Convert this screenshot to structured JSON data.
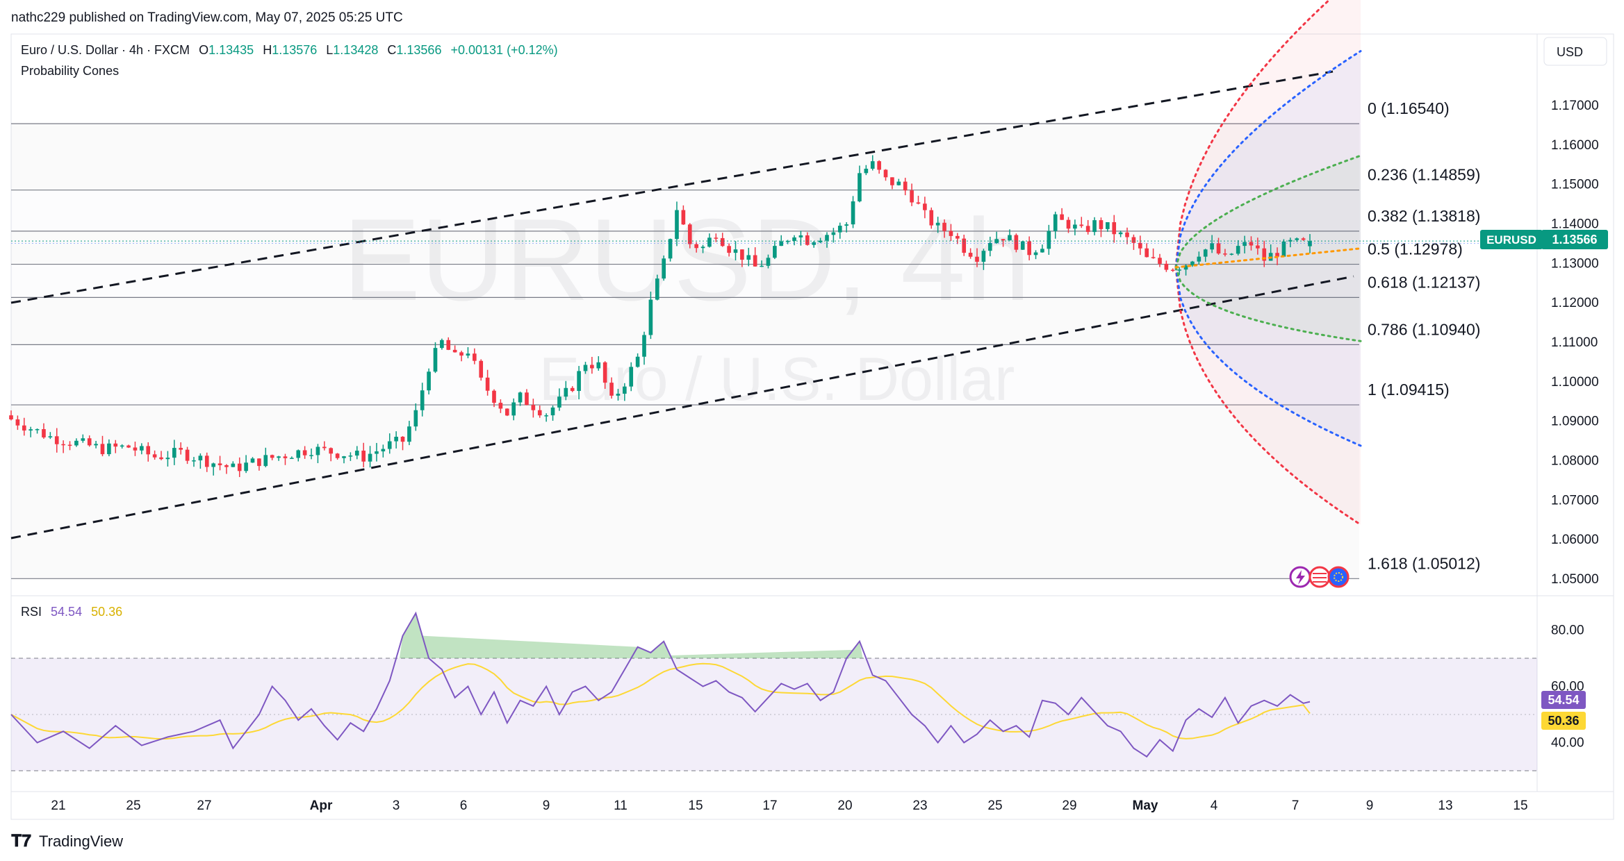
{
  "header": {
    "publisher": "nathc229 published on TradingView.com, May 07, 2025 05:25 UTC"
  },
  "legend": {
    "symbol": "Euro / U.S. Dollar · 4h · FXCM",
    "open_label": "O",
    "open": "1.13435",
    "high_label": "H",
    "high": "1.13576",
    "low_label": "L",
    "low": "1.13428",
    "close_label": "C",
    "close": "1.13566",
    "change": "+0.00131 (+0.12%)",
    "indicator": "Probability Cones"
  },
  "watermark": {
    "ticker": "EURUSD, 4h",
    "name": "Euro / U.S. Dollar"
  },
  "price_axis": {
    "currency": "USD",
    "ticks": [
      "1.17000",
      "1.16000",
      "1.15000",
      "1.14000",
      "1.13000",
      "1.12000",
      "1.11000",
      "1.10000",
      "1.09000",
      "1.08000",
      "1.07000",
      "1.06000",
      "1.05000"
    ],
    "current_symbol": "EURUSD",
    "current_price": "1.13566"
  },
  "fib_labels": [
    "0 (1.16540)",
    "0.236 (1.14859)",
    "0.382 (1.13818)",
    "0.5 (1.12978)",
    "0.618 (1.12137)",
    "0.786 (1.10940)",
    "1 (1.09415)",
    "1.618 (1.05012)"
  ],
  "rsi": {
    "label": "RSI",
    "value": "54.54",
    "ma_value": "50.36",
    "ticks": [
      "80.00",
      "60.00",
      "40.00"
    ]
  },
  "time_axis": {
    "labels": [
      "21",
      "25",
      "27",
      "Apr",
      "3",
      "6",
      "9",
      "11",
      "15",
      "17",
      "20",
      "23",
      "25",
      "29",
      "May",
      "4",
      "7",
      "9",
      "13",
      "15"
    ]
  },
  "footer": {
    "brand": "TradingView"
  },
  "colors": {
    "up": "#089981",
    "down": "#f23645",
    "rsi_line": "#7e57c2",
    "rsi_ma": "#fdd835",
    "cone_outer": "#f23645",
    "cone_mid": "#2962ff",
    "cone_inner": "#4caf50",
    "cone_center": "#ff9800",
    "price_tag": "#089981"
  },
  "chart_data": {
    "type": "candlestick",
    "symbol": "EURUSD",
    "timeframe": "4h",
    "ylim": [
      1.045,
      1.178
    ],
    "fib_levels": [
      {
        "ratio": "0",
        "price": 1.1654
      },
      {
        "ratio": "0.236",
        "price": 1.14859
      },
      {
        "ratio": "0.382",
        "price": 1.13818
      },
      {
        "ratio": "0.5",
        "price": 1.12978
      },
      {
        "ratio": "0.618",
        "price": 1.12137
      },
      {
        "ratio": "0.786",
        "price": 1.1094
      },
      {
        "ratio": "1",
        "price": 1.09415
      },
      {
        "ratio": "1.618",
        "price": 1.05012
      }
    ],
    "close_path": [
      [
        0,
        1.0905
      ],
      [
        6,
        1.086
      ],
      [
        10,
        1.0845
      ],
      [
        14,
        1.083
      ],
      [
        18,
        1.0835
      ],
      [
        22,
        1.081
      ],
      [
        26,
        1.082
      ],
      [
        30,
        1.08
      ],
      [
        34,
        1.078
      ],
      [
        38,
        1.08
      ],
      [
        42,
        1.0815
      ],
      [
        46,
        1.083
      ],
      [
        50,
        1.082
      ],
      [
        54,
        1.081
      ],
      [
        58,
        1.084
      ],
      [
        60,
        1.085
      ],
      [
        62,
        1.092
      ],
      [
        64,
        1.104
      ],
      [
        66,
        1.11
      ],
      [
        68,
        1.106
      ],
      [
        70,
        1.108
      ],
      [
        72,
        1.1
      ],
      [
        74,
        1.096
      ],
      [
        76,
        1.092
      ],
      [
        78,
        1.096
      ],
      [
        80,
        1.094
      ],
      [
        82,
        1.092
      ],
      [
        84,
        1.095
      ],
      [
        86,
        1.099
      ],
      [
        88,
        1.105
      ],
      [
        90,
        1.104
      ],
      [
        92,
        1.095
      ],
      [
        94,
        1.1
      ],
      [
        96,
        1.106
      ],
      [
        98,
        1.12
      ],
      [
        100,
        1.13
      ],
      [
        102,
        1.144
      ],
      [
        104,
        1.135
      ],
      [
        106,
        1.134
      ],
      [
        108,
        1.138
      ],
      [
        110,
        1.134
      ],
      [
        112,
        1.132
      ],
      [
        114,
        1.129
      ],
      [
        116,
        1.131
      ],
      [
        118,
        1.135
      ],
      [
        120,
        1.138
      ],
      [
        122,
        1.136
      ],
      [
        124,
        1.137
      ],
      [
        126,
        1.138
      ],
      [
        128,
        1.14
      ],
      [
        130,
        1.153
      ],
      [
        132,
        1.155
      ],
      [
        134,
        1.151
      ],
      [
        136,
        1.15
      ],
      [
        138,
        1.147
      ],
      [
        140,
        1.142
      ],
      [
        142,
        1.139
      ],
      [
        144,
        1.138
      ],
      [
        146,
        1.134
      ],
      [
        148,
        1.132
      ],
      [
        150,
        1.136
      ],
      [
        152,
        1.137
      ],
      [
        154,
        1.135
      ],
      [
        156,
        1.133
      ],
      [
        158,
        1.135
      ],
      [
        160,
        1.141
      ],
      [
        162,
        1.14
      ],
      [
        164,
        1.138
      ],
      [
        166,
        1.14
      ],
      [
        168,
        1.139
      ],
      [
        170,
        1.137
      ],
      [
        172,
        1.135
      ],
      [
        174,
        1.131
      ],
      [
        176,
        1.13
      ],
      [
        178,
        1.129
      ],
      [
        180,
        1.13
      ],
      [
        182,
        1.133
      ],
      [
        184,
        1.134
      ],
      [
        186,
        1.131
      ],
      [
        188,
        1.134
      ],
      [
        190,
        1.135
      ],
      [
        192,
        1.131
      ],
      [
        194,
        1.133
      ],
      [
        196,
        1.135
      ],
      [
        198,
        1.135
      ],
      [
        199,
        1.13566
      ]
    ],
    "rsi_path": [
      [
        0,
        50
      ],
      [
        4,
        40
      ],
      [
        8,
        44
      ],
      [
        12,
        38
      ],
      [
        16,
        46
      ],
      [
        20,
        39
      ],
      [
        24,
        42
      ],
      [
        28,
        44
      ],
      [
        32,
        48
      ],
      [
        34,
        38
      ],
      [
        38,
        50
      ],
      [
        40,
        60
      ],
      [
        42,
        55
      ],
      [
        44,
        48
      ],
      [
        46,
        52
      ],
      [
        48,
        46
      ],
      [
        50,
        41
      ],
      [
        52,
        47
      ],
      [
        54,
        44
      ],
      [
        56,
        52
      ],
      [
        58,
        62
      ],
      [
        60,
        78
      ],
      [
        62,
        86
      ],
      [
        64,
        70
      ],
      [
        66,
        66
      ],
      [
        68,
        56
      ],
      [
        70,
        60
      ],
      [
        72,
        50
      ],
      [
        74,
        58
      ],
      [
        76,
        47
      ],
      [
        78,
        55
      ],
      [
        80,
        53
      ],
      [
        82,
        60
      ],
      [
        84,
        50
      ],
      [
        86,
        58
      ],
      [
        88,
        60
      ],
      [
        90,
        55
      ],
      [
        92,
        58
      ],
      [
        94,
        66
      ],
      [
        96,
        74
      ],
      [
        98,
        72
      ],
      [
        100,
        76
      ],
      [
        102,
        66
      ],
      [
        104,
        63
      ],
      [
        106,
        60
      ],
      [
        108,
        62
      ],
      [
        110,
        58
      ],
      [
        112,
        56
      ],
      [
        114,
        51
      ],
      [
        116,
        56
      ],
      [
        118,
        61
      ],
      [
        120,
        59
      ],
      [
        122,
        61
      ],
      [
        124,
        55
      ],
      [
        126,
        58
      ],
      [
        128,
        70
      ],
      [
        130,
        76
      ],
      [
        132,
        64
      ],
      [
        134,
        62
      ],
      [
        136,
        56
      ],
      [
        138,
        50
      ],
      [
        140,
        46
      ],
      [
        142,
        40
      ],
      [
        144,
        46
      ],
      [
        146,
        40
      ],
      [
        148,
        43
      ],
      [
        150,
        48
      ],
      [
        152,
        44
      ],
      [
        154,
        46
      ],
      [
        156,
        42
      ],
      [
        158,
        55
      ],
      [
        160,
        54
      ],
      [
        162,
        50
      ],
      [
        164,
        56
      ],
      [
        166,
        51
      ],
      [
        168,
        46
      ],
      [
        170,
        44
      ],
      [
        172,
        38
      ],
      [
        174,
        35
      ],
      [
        176,
        41
      ],
      [
        178,
        37
      ],
      [
        180,
        48
      ],
      [
        182,
        52
      ],
      [
        184,
        49
      ],
      [
        186,
        56
      ],
      [
        188,
        47
      ],
      [
        190,
        53
      ],
      [
        192,
        55
      ],
      [
        194,
        53
      ],
      [
        196,
        57
      ],
      [
        198,
        54
      ],
      [
        199,
        54.54
      ]
    ]
  }
}
